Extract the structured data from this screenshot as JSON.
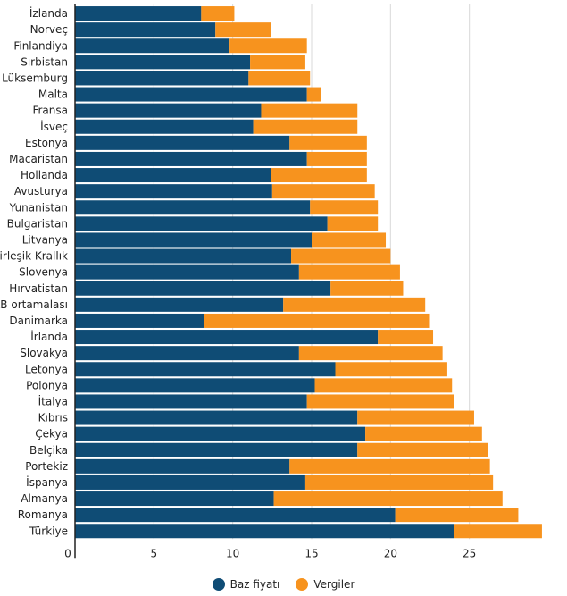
{
  "colors": {
    "base": "#0f4c75",
    "tax": "#f7931e",
    "grid": "#d9d9d9",
    "axis": "#222222"
  },
  "chart_data": {
    "type": "bar",
    "orientation": "horizontal",
    "stacked": true,
    "title": "",
    "xlabel": "",
    "ylabel": "",
    "xlim": [
      0,
      30
    ],
    "xticks": [
      0,
      5,
      10,
      15,
      20,
      25
    ],
    "grid": true,
    "legend_position": "bottom-center",
    "categories": [
      "İzlanda",
      "Norveç",
      "Finlandiya",
      "Sırbistan",
      "Lüksemburg",
      "Malta",
      "Fransa",
      "İsveç",
      "Estonya",
      "Macaristan",
      "Hollanda",
      "Avusturya",
      "Yunanistan",
      "Bulgaristan",
      "Litvanya",
      "Birleşik Krallık",
      "Slovenya",
      "Hırvatistan",
      "AB ortamalası",
      "Danimarka",
      "İrlanda",
      "Slovakya",
      "Letonya",
      "Polonya",
      "İtalya",
      "Kıbrıs",
      "Çekya",
      "Belçika",
      "Portekiz",
      "İspanya",
      "Almanya",
      "Romanya",
      "Türkiye"
    ],
    "series": [
      {
        "name": "Baz fiyatı",
        "color": "#0f4c75",
        "values": [
          8.0,
          8.9,
          9.8,
          11.1,
          11.0,
          14.7,
          11.8,
          11.3,
          13.6,
          14.7,
          12.4,
          12.5,
          14.9,
          16.0,
          15.0,
          13.7,
          14.2,
          16.2,
          13.2,
          8.2,
          19.2,
          14.2,
          16.5,
          15.2,
          14.7,
          17.9,
          18.4,
          17.9,
          13.6,
          14.6,
          12.6,
          20.3,
          24.0
        ]
      },
      {
        "name": "Vergiler",
        "color": "#f7931e",
        "values": [
          2.1,
          3.5,
          4.9,
          3.5,
          3.9,
          0.9,
          6.1,
          6.6,
          4.9,
          3.8,
          6.1,
          6.5,
          4.3,
          3.2,
          4.7,
          6.3,
          6.4,
          4.6,
          9.0,
          14.3,
          3.5,
          9.1,
          7.1,
          8.7,
          9.3,
          7.4,
          7.4,
          8.3,
          12.7,
          11.9,
          14.5,
          7.8,
          5.6
        ]
      }
    ]
  }
}
